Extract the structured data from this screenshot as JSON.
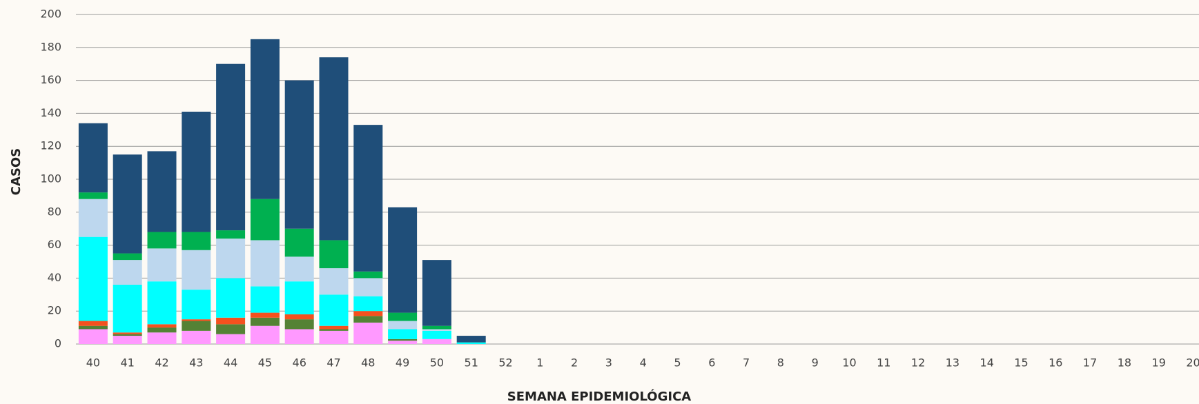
{
  "chart_data": {
    "type": "stacked_bar",
    "x_label": "SEMANA EPIDEMIOLÓGICA",
    "y_label": "CASOS",
    "categories": [
      "40",
      "41",
      "42",
      "43",
      "44",
      "45",
      "46",
      "47",
      "48",
      "49",
      "50",
      "51",
      "52",
      "1",
      "2",
      "3",
      "4",
      "5",
      "6",
      "7",
      "8",
      "9",
      "10",
      "11",
      "12",
      "13",
      "14",
      "15",
      "16",
      "17",
      "18",
      "19",
      "20"
    ],
    "series": [
      {
        "color": "#ff99ff",
        "values": [
          9,
          5,
          7,
          8,
          6,
          11,
          9,
          8,
          13,
          2,
          3,
          0,
          null,
          null,
          null,
          null,
          null,
          null,
          null,
          null,
          null,
          null,
          null,
          null,
          null,
          null,
          null,
          null,
          null,
          null,
          null,
          null,
          null
        ]
      },
      {
        "color": "#548235",
        "values": [
          2,
          1,
          3,
          6,
          6,
          5,
          6,
          1,
          4,
          1,
          0,
          0,
          null,
          null,
          null,
          null,
          null,
          null,
          null,
          null,
          null,
          null,
          null,
          null,
          null,
          null,
          null,
          null,
          null,
          null,
          null,
          null,
          null
        ]
      },
      {
        "color": "#f4511e",
        "values": [
          3,
          1,
          2,
          1,
          4,
          3,
          3,
          2,
          3,
          0,
          0,
          0,
          null,
          null,
          null,
          null,
          null,
          null,
          null,
          null,
          null,
          null,
          null,
          null,
          null,
          null,
          null,
          null,
          null,
          null,
          null,
          null,
          null
        ]
      },
      {
        "color": "#00ffff",
        "values": [
          51,
          29,
          26,
          18,
          24,
          16,
          20,
          19,
          9,
          6,
          5,
          1,
          null,
          null,
          null,
          null,
          null,
          null,
          null,
          null,
          null,
          null,
          null,
          null,
          null,
          null,
          null,
          null,
          null,
          null,
          null,
          null,
          null
        ]
      },
      {
        "color": "#bdd7ee",
        "values": [
          23,
          15,
          20,
          24,
          24,
          28,
          15,
          16,
          11,
          5,
          1,
          0,
          null,
          null,
          null,
          null,
          null,
          null,
          null,
          null,
          null,
          null,
          null,
          null,
          null,
          null,
          null,
          null,
          null,
          null,
          null,
          null,
          null
        ]
      },
      {
        "color": "#00b050",
        "values": [
          4,
          4,
          10,
          11,
          5,
          25,
          17,
          17,
          4,
          5,
          2,
          0,
          null,
          null,
          null,
          null,
          null,
          null,
          null,
          null,
          null,
          null,
          null,
          null,
          null,
          null,
          null,
          null,
          null,
          null,
          null,
          null,
          null
        ]
      },
      {
        "color": "#1f4e79",
        "values": [
          42,
          60,
          49,
          73,
          101,
          97,
          90,
          111,
          89,
          64,
          40,
          4,
          null,
          null,
          null,
          null,
          null,
          null,
          null,
          null,
          null,
          null,
          null,
          null,
          null,
          null,
          null,
          null,
          null,
          null,
          null,
          null,
          null
        ]
      }
    ],
    "ylim": [
      0,
      200
    ],
    "yticks": [
      0,
      20,
      40,
      60,
      80,
      100,
      120,
      140,
      160,
      180,
      200
    ],
    "grid": true
  }
}
